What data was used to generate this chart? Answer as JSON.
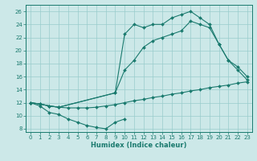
{
  "xlabel": "Humidex (Indice chaleur)",
  "xlim": [
    -0.5,
    23.5
  ],
  "ylim": [
    7.5,
    27
  ],
  "yticks": [
    8,
    10,
    12,
    14,
    16,
    18,
    20,
    22,
    24,
    26
  ],
  "xticks": [
    0,
    1,
    2,
    3,
    4,
    5,
    6,
    7,
    8,
    9,
    10,
    11,
    12,
    13,
    14,
    15,
    16,
    17,
    18,
    19,
    20,
    21,
    22,
    23
  ],
  "bg_color": "#cce8e8",
  "line_color": "#1a7a6e",
  "grid_color": "#99cccc",
  "lines": [
    {
      "x": [
        0,
        1,
        2,
        3,
        4,
        5,
        6,
        7,
        8,
        9,
        10
      ],
      "y": [
        12,
        11.5,
        10.5,
        10.2,
        9.5,
        9.0,
        8.5,
        8.2,
        8.0,
        9.0,
        9.5
      ]
    },
    {
      "x": [
        0,
        1,
        2,
        3,
        4,
        5,
        6,
        7,
        8,
        9,
        10,
        11,
        12,
        13,
        14,
        15,
        16,
        17,
        18,
        19,
        20,
        21,
        22,
        23
      ],
      "y": [
        12,
        11.8,
        11.5,
        11.3,
        11.2,
        11.2,
        11.2,
        11.3,
        11.5,
        11.7,
        12.0,
        12.3,
        12.5,
        12.8,
        13.0,
        13.3,
        13.5,
        13.8,
        14.0,
        14.3,
        14.5,
        14.7,
        15.0,
        15.2
      ]
    },
    {
      "x": [
        0,
        1,
        2,
        3,
        9,
        10,
        11,
        12,
        13,
        14,
        15,
        16,
        17,
        18,
        19,
        20,
        21,
        22,
        23
      ],
      "y": [
        12,
        11.8,
        11.5,
        11.3,
        13.5,
        22.5,
        24.0,
        23.5,
        24.0,
        24.0,
        25.0,
        25.5,
        26.0,
        25.0,
        24.0,
        21.0,
        18.5,
        17.0,
        15.5
      ]
    },
    {
      "x": [
        0,
        1,
        2,
        3,
        9,
        10,
        11,
        12,
        13,
        14,
        15,
        16,
        17,
        18,
        19,
        20,
        21,
        22,
        23
      ],
      "y": [
        12,
        11.8,
        11.5,
        11.3,
        13.5,
        17.0,
        18.5,
        20.5,
        21.5,
        22.0,
        22.5,
        23.0,
        24.5,
        24.0,
        23.5,
        21.0,
        18.5,
        17.5,
        16.0
      ]
    }
  ]
}
